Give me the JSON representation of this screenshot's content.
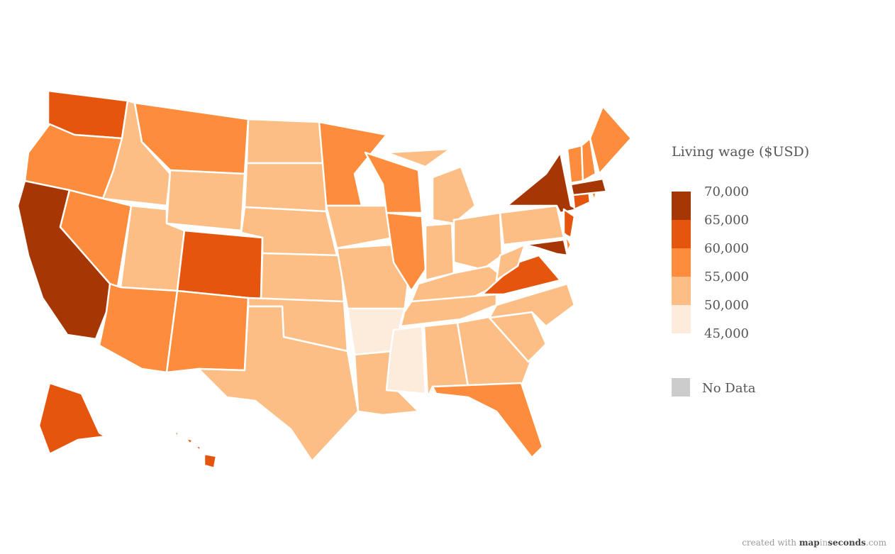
{
  "map": {
    "legend_title": "Living wage ($USD)",
    "ticks": [
      {
        "value": 45000,
        "label": "45,000"
      },
      {
        "value": 50000,
        "label": "50,000"
      },
      {
        "value": 55000,
        "label": "55,000"
      },
      {
        "value": 60000,
        "label": "60,000"
      },
      {
        "value": 65000,
        "label": "65,000"
      },
      {
        "value": 70000,
        "label": "70,000"
      }
    ],
    "colors": [
      "#fdebdc",
      "#fdbe85",
      "#fd8d3c",
      "#e6550d",
      "#a63603"
    ],
    "no_data_label": "No Data",
    "no_data_color": "#cccccc",
    "values": [
      62500,
      57500,
      67500,
      52500,
      57500,
      57500,
      52500,
      52500,
      57500,
      62500,
      57500,
      52500,
      52500,
      52500,
      52500,
      52500,
      52500,
      57500,
      52500,
      52500,
      47500,
      52500,
      57500,
      57500,
      52500,
      52500,
      52500,
      52500,
      52500,
      47500,
      52500,
      52500,
      57500,
      52500,
      52500,
      62500,
      52500,
      52500,
      67500,
      62500,
      67500,
      57500,
      62500,
      57500,
      67500,
      57500,
      57500,
      57500,
      62500,
      62500
    ]
  },
  "footer": {
    "prefix": "created with",
    "brand_a": "map",
    "brand_b": "in",
    "brand_c": "seconds",
    "suffix": ".com"
  }
}
